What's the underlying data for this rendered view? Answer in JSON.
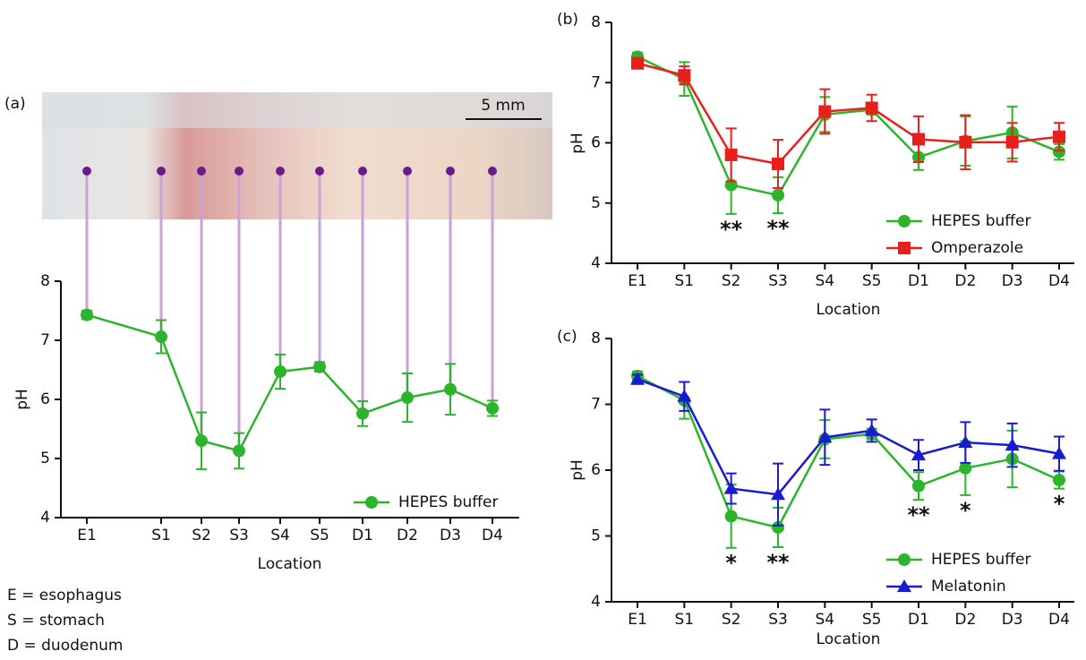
{
  "chart_data": [
    {
      "type": "line",
      "panel": "(a)",
      "x_label": "Location",
      "y_label": "pH",
      "categories": [
        "E1",
        "S1",
        "S2",
        "S3",
        "S4",
        "S5",
        "D1",
        "D2",
        "D3",
        "D4"
      ],
      "ylim": [
        4,
        8
      ],
      "yticks": [
        4,
        5,
        6,
        7,
        8
      ],
      "legend": "lower right",
      "scale_bar": "5 mm",
      "series": [
        {
          "name": "HEPES buffer",
          "color": "#2cb52c",
          "marker": "circle",
          "values": [
            7.43,
            7.06,
            5.3,
            5.13,
            6.47,
            6.55,
            5.76,
            6.03,
            6.17,
            5.85
          ],
          "errors": [
            0.07,
            0.28,
            0.48,
            0.3,
            0.29,
            0.08,
            0.21,
            0.41,
            0.43,
            0.13
          ]
        }
      ]
    },
    {
      "type": "line",
      "panel": "(b)",
      "x_label": "Location",
      "y_label": "pH",
      "categories": [
        "E1",
        "S1",
        "S2",
        "S3",
        "S4",
        "S5",
        "D1",
        "D2",
        "D3",
        "D4"
      ],
      "ylim": [
        4,
        8
      ],
      "yticks": [
        4,
        5,
        6,
        7,
        8
      ],
      "legend": "lower right",
      "significance": [
        null,
        null,
        "**",
        "**",
        null,
        null,
        null,
        null,
        null,
        null
      ],
      "series": [
        {
          "name": "HEPES buffer",
          "color": "#2cb52c",
          "marker": "circle",
          "values": [
            7.43,
            7.06,
            5.3,
            5.13,
            6.47,
            6.55,
            5.76,
            6.03,
            6.17,
            5.85
          ],
          "errors": [
            0.07,
            0.28,
            0.48,
            0.3,
            0.29,
            0.08,
            0.21,
            0.41,
            0.43,
            0.13
          ]
        },
        {
          "name": "Omperazole",
          "color": "#e8201c",
          "marker": "square",
          "values": [
            7.32,
            7.12,
            5.8,
            5.65,
            6.52,
            6.58,
            6.06,
            6.01,
            6.01,
            6.1
          ],
          "errors": [
            0.08,
            0.15,
            0.44,
            0.4,
            0.37,
            0.22,
            0.38,
            0.45,
            0.32,
            0.23
          ]
        }
      ]
    },
    {
      "type": "line",
      "panel": "(c)",
      "x_label": "Location",
      "y_label": "pH",
      "categories": [
        "E1",
        "S1",
        "S2",
        "S3",
        "S4",
        "S5",
        "D1",
        "D2",
        "D3",
        "D4"
      ],
      "ylim": [
        4,
        8
      ],
      "yticks": [
        4,
        5,
        6,
        7,
        8
      ],
      "legend": "lower right",
      "significance": [
        null,
        null,
        "*",
        "**",
        null,
        null,
        "**",
        "*",
        null,
        "*"
      ],
      "series": [
        {
          "name": "HEPES buffer",
          "color": "#2cb52c",
          "marker": "circle",
          "values": [
            7.43,
            7.06,
            5.3,
            5.13,
            6.47,
            6.55,
            5.76,
            6.03,
            6.17,
            5.85
          ],
          "errors": [
            0.07,
            0.28,
            0.48,
            0.3,
            0.29,
            0.08,
            0.21,
            0.41,
            0.43,
            0.13
          ]
        },
        {
          "name": "Melatonin",
          "color": "#1a1ad0",
          "marker": "triangle",
          "values": [
            7.38,
            7.12,
            5.72,
            5.63,
            6.5,
            6.6,
            6.23,
            6.42,
            6.38,
            6.25
          ],
          "errors": [
            0.07,
            0.22,
            0.23,
            0.47,
            0.42,
            0.17,
            0.23,
            0.31,
            0.33,
            0.26
          ]
        }
      ]
    }
  ],
  "notes": [
    "E = esophagus",
    "S = stomach",
    "D = duodenum"
  ]
}
